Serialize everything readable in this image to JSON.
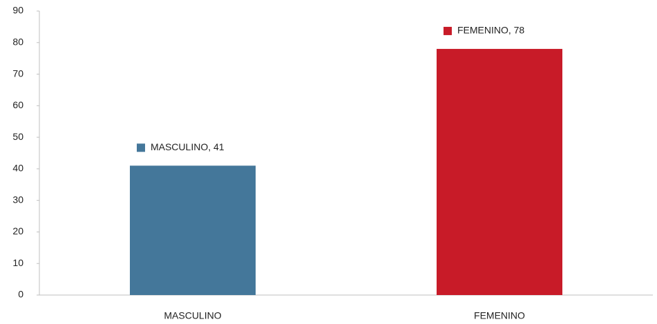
{
  "chart_data": {
    "type": "bar",
    "categories": [
      "MASCULINO",
      "FEMENINO"
    ],
    "values": [
      41,
      78
    ],
    "value_labels": [
      "MASCULINO, 41",
      "FEMENINO, 78"
    ],
    "colors": [
      "#44779a",
      "#c81b28"
    ],
    "ylim": [
      0,
      90
    ],
    "yticks": [
      0,
      10,
      20,
      30,
      40,
      50,
      60,
      70,
      80,
      90
    ],
    "grid": false
  }
}
